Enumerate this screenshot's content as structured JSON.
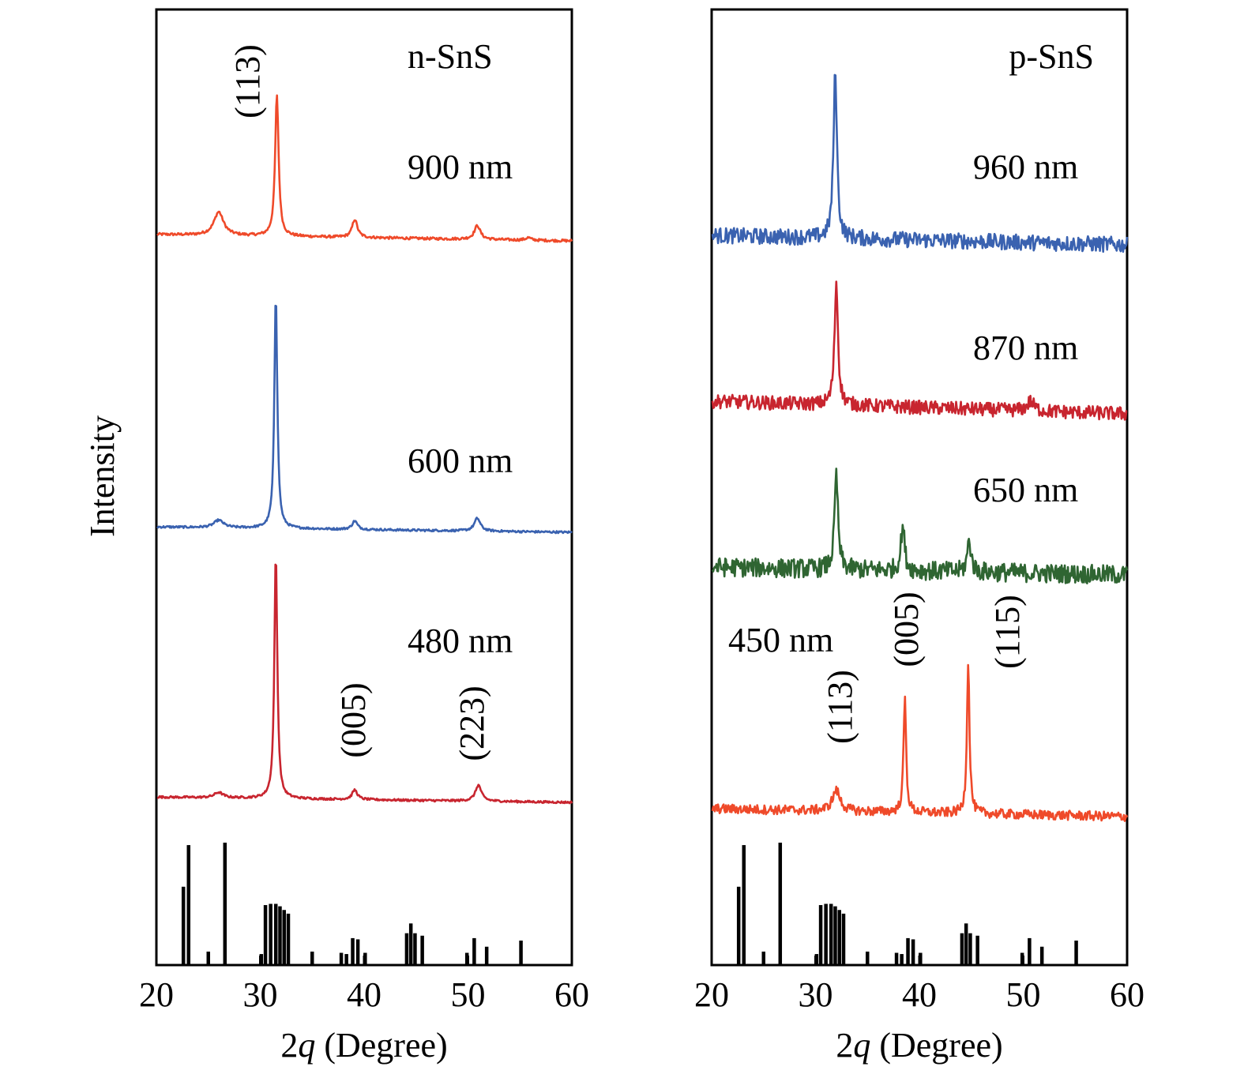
{
  "y_axis_title": "Intensity",
  "chart_data": [
    {
      "type": "line",
      "panel_label": "n-SnS",
      "xlabel": "2q (Degree)",
      "xlim": [
        20,
        60
      ],
      "xticks": [
        "20",
        "30",
        "40",
        "50",
        "60"
      ],
      "ylabel": "Intensity",
      "grid": false,
      "series": [
        {
          "name": "900 nm",
          "color": "#ef4a2a",
          "baseline": [
            1.5,
            1.2
          ],
          "noise": 0.06,
          "peaks": [
            [
              26.0,
              1.1,
              0.55
            ],
            [
              31.6,
              6.6,
              0.2
            ],
            [
              39.1,
              0.85,
              0.3
            ],
            [
              50.9,
              0.65,
              0.35
            ],
            [
              55.8,
              0.12,
              0.3
            ]
          ]
        },
        {
          "name": "600 nm",
          "color": "#3a62b0",
          "baseline": [
            1.05,
            0.8
          ],
          "noise": 0.05,
          "peaks": [
            [
              26.0,
              0.35,
              0.55
            ],
            [
              31.5,
              11.0,
              0.17
            ],
            [
              39.1,
              0.4,
              0.3
            ],
            [
              50.9,
              0.6,
              0.35
            ]
          ]
        },
        {
          "name": "480 nm",
          "color": "#c8252f",
          "baseline": [
            0.95,
            0.7
          ],
          "noise": 0.05,
          "peaks": [
            [
              26.0,
              0.25,
              0.5
            ],
            [
              31.5,
              11.5,
              0.17
            ],
            [
              39.1,
              0.45,
              0.3
            ],
            [
              51.0,
              0.75,
              0.35
            ]
          ]
        }
      ],
      "annotations": [
        {
          "text": "(113)",
          "x": 31.5,
          "series": "900 nm"
        },
        {
          "text": "(005)",
          "x": 39.0,
          "series": "480 nm"
        },
        {
          "text": "(223)",
          "x": 51.0,
          "series": "480 nm"
        }
      ],
      "reference": {
        "positions": [
          22.6,
          23.1,
          25.0,
          26.6,
          30.1,
          30.5,
          31.0,
          31.5,
          31.9,
          32.3,
          32.7,
          35.0,
          37.8,
          38.3,
          38.9,
          39.4,
          40.1,
          44.1,
          44.5,
          44.9,
          45.6,
          49.9,
          50.6,
          51.8,
          55.1
        ],
        "heights": [
          0.64,
          0.98,
          0.11,
          1.0,
          0.09,
          0.49,
          0.5,
          0.5,
          0.48,
          0.45,
          0.42,
          0.11,
          0.1,
          0.09,
          0.22,
          0.21,
          0.1,
          0.26,
          0.34,
          0.26,
          0.24,
          0.1,
          0.22,
          0.15,
          0.2
        ]
      }
    },
    {
      "type": "line",
      "panel_label": "p-SnS",
      "xlabel": "2q (Degree)",
      "xlim": [
        20,
        60
      ],
      "xticks": [
        "20",
        "30",
        "40",
        "50",
        "60"
      ],
      "ylabel": "Intensity",
      "grid": false,
      "series": [
        {
          "name": "960 nm",
          "color": "#3a62b0",
          "baseline": [
            1.3,
            1.0
          ],
          "noise": 0.25,
          "peaks": [
            [
              31.9,
              5.3,
              0.2
            ]
          ]
        },
        {
          "name": "870 nm",
          "color": "#c8252f",
          "baseline": [
            1.15,
            0.75
          ],
          "noise": 0.22,
          "peaks": [
            [
              32.0,
              3.9,
              0.2
            ],
            [
              50.7,
              0.3,
              0.4
            ]
          ]
        },
        {
          "name": "650 nm",
          "color": "#2f6532",
          "baseline": [
            0.85,
            0.6
          ],
          "noise": 0.3,
          "peaks": [
            [
              32.0,
              3.0,
              0.2
            ],
            [
              38.4,
              1.4,
              0.22
            ],
            [
              44.8,
              1.0,
              0.22
            ]
          ]
        },
        {
          "name": "450 nm",
          "color": "#ef4a2a",
          "baseline": [
            0.6,
            0.35
          ],
          "noise": 0.15,
          "peaks": [
            [
              32.0,
              0.65,
              0.45
            ],
            [
              38.6,
              3.6,
              0.15
            ],
            [
              44.7,
              4.8,
              0.15
            ]
          ]
        }
      ],
      "annotations": [
        {
          "text": "(113)",
          "x": 32.0,
          "series": "450 nm"
        },
        {
          "text": "(005)",
          "x": 38.6,
          "series": "450 nm"
        },
        {
          "text": "(115)",
          "x": 44.9,
          "series": "450 nm"
        }
      ],
      "reference": {
        "positions": [
          22.6,
          23.1,
          25.0,
          26.6,
          30.1,
          30.5,
          31.0,
          31.5,
          31.9,
          32.3,
          32.7,
          35.0,
          37.8,
          38.3,
          38.9,
          39.4,
          40.1,
          44.1,
          44.5,
          44.9,
          45.6,
          49.9,
          50.6,
          51.8,
          55.1
        ],
        "heights": [
          0.64,
          0.98,
          0.11,
          1.0,
          0.09,
          0.49,
          0.5,
          0.5,
          0.48,
          0.45,
          0.42,
          0.11,
          0.1,
          0.09,
          0.22,
          0.21,
          0.1,
          0.26,
          0.34,
          0.26,
          0.24,
          0.1,
          0.22,
          0.15,
          0.2
        ]
      }
    }
  ]
}
